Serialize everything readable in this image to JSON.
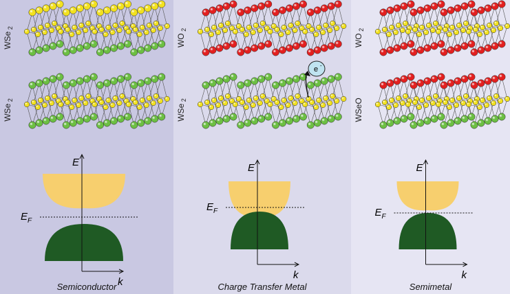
{
  "panels": [
    {
      "name": "Semiconductor",
      "bg": "#c9c8e2",
      "top_layer": {
        "formula": "WSe",
        "sub": "2",
        "up": "yellow",
        "down": "green",
        "defect": false
      },
      "bottom_layer": {
        "formula": "WSe",
        "sub": "2",
        "up": "green",
        "down": "green",
        "defect": false
      },
      "band": {
        "gap": true,
        "touch": "gap"
      },
      "electron": false
    },
    {
      "name": "Charge Transfer Metal",
      "bg": "#dbdaec",
      "top_layer": {
        "formula": "WO",
        "sub": "2",
        "up": "red",
        "down": "red",
        "defect": false
      },
      "bottom_layer": {
        "formula": "WSe",
        "sub": "2",
        "up": "green",
        "down": "green",
        "defect": false
      },
      "band": {
        "gap": false,
        "touch": "overlap"
      },
      "electron": true
    },
    {
      "name": "Semimetal",
      "bg": "#e6e5f3",
      "top_layer": {
        "formula": "WO",
        "sub": "2",
        "up": "red",
        "down": "red",
        "defect": false
      },
      "bottom_layer": {
        "formula": "WSeO",
        "sub": "",
        "up": "red",
        "down": "green",
        "defect": false
      },
      "band": {
        "gap": false,
        "touch": "touch"
      },
      "electron": false
    }
  ],
  "axis": {
    "energy": "E",
    "momentum": "k",
    "fermi": "E",
    "fermi_sub": "F"
  },
  "electron_label": "e",
  "electron_sup": "-",
  "colors": {
    "selenium": "#6cbf43",
    "tungsten": "#f2e11f",
    "oxygen": "#e32020",
    "conduction": "#f7cf6e",
    "valence": "#1f5a24",
    "electron_fill": "#bfe3f0"
  }
}
